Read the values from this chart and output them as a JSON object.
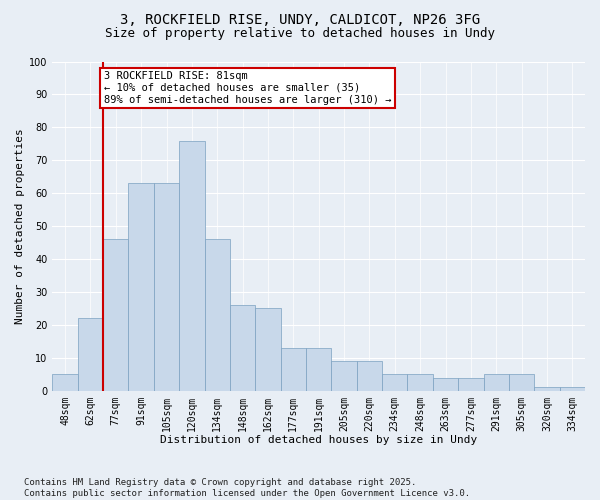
{
  "title_line1": "3, ROCKFIELD RISE, UNDY, CALDICOT, NP26 3FG",
  "title_line2": "Size of property relative to detached houses in Undy",
  "xlabel": "Distribution of detached houses by size in Undy",
  "ylabel": "Number of detached properties",
  "bar_labels": [
    "48sqm",
    "62sqm",
    "77sqm",
    "91sqm",
    "105sqm",
    "120sqm",
    "134sqm",
    "148sqm",
    "162sqm",
    "177sqm",
    "191sqm",
    "205sqm",
    "220sqm",
    "234sqm",
    "248sqm",
    "263sqm",
    "277sqm",
    "291sqm",
    "305sqm",
    "320sqm",
    "334sqm"
  ],
  "bar_values": [
    5,
    22,
    46,
    63,
    63,
    76,
    46,
    26,
    25,
    13,
    13,
    9,
    9,
    5,
    5,
    4,
    4,
    5,
    5,
    1,
    1
  ],
  "bar_color": "#c8d8ea",
  "bar_edge_color": "#7aa0c0",
  "vline_x": 1.5,
  "vline_color": "#cc0000",
  "annotation_text": "3 ROCKFIELD RISE: 81sqm\n← 10% of detached houses are smaller (35)\n89% of semi-detached houses are larger (310) →",
  "annotation_box_color": "#cc0000",
  "annotation_text_color": "#000000",
  "ylim": [
    0,
    100
  ],
  "yticks": [
    0,
    10,
    20,
    30,
    40,
    50,
    60,
    70,
    80,
    90,
    100
  ],
  "background_color": "#e8eef5",
  "plot_bg_color": "#e8eef5",
  "footer_text": "Contains HM Land Registry data © Crown copyright and database right 2025.\nContains public sector information licensed under the Open Government Licence v3.0.",
  "grid_color": "#ffffff",
  "title_fontsize": 10,
  "subtitle_fontsize": 9,
  "axis_label_fontsize": 8,
  "tick_fontsize": 7,
  "annotation_fontsize": 7.5,
  "footer_fontsize": 6.5
}
